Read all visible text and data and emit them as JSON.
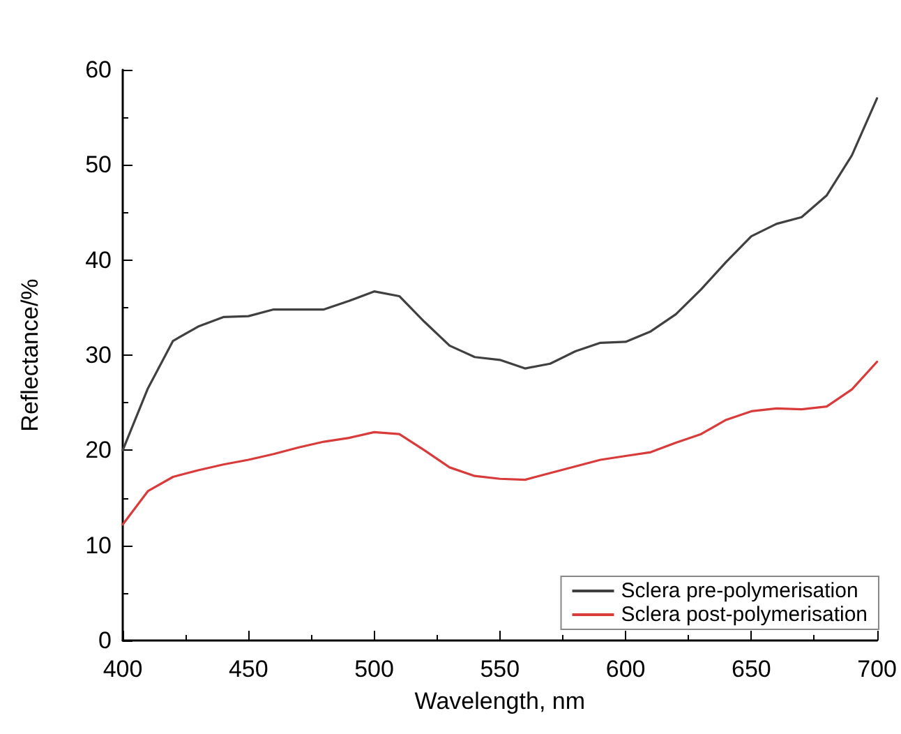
{
  "chart_data": {
    "type": "line",
    "xlabel": "Wavelength, nm",
    "ylabel": "Reflectance/%",
    "x": [
      400,
      410,
      420,
      430,
      440,
      450,
      460,
      470,
      480,
      490,
      500,
      510,
      520,
      530,
      540,
      550,
      560,
      570,
      580,
      590,
      600,
      610,
      620,
      630,
      640,
      650,
      660,
      670,
      680,
      690,
      700
    ],
    "series": [
      {
        "name": "Sclera pre-polymerisation",
        "color": "#404040",
        "values": [
          20,
          26.5,
          31.5,
          33,
          34,
          34.1,
          34.8,
          34.8,
          34.8,
          35.7,
          36.7,
          36.2,
          33.5,
          31,
          29.8,
          29.5,
          28.6,
          29.1,
          30.4,
          31.3,
          31.4,
          32.5,
          34.3,
          36.9,
          39.8,
          42.5,
          43.8,
          44.5,
          46.8,
          51,
          57
        ]
      },
      {
        "name": "Sclera post-polymerisation",
        "color": "#d93a3a",
        "values": [
          12.2,
          15.7,
          17.2,
          17.9,
          18.5,
          19,
          19.6,
          20.3,
          20.9,
          21.3,
          21.9,
          21.7,
          20,
          18.2,
          17.3,
          17,
          16.9,
          17.6,
          18.3,
          19,
          19.4,
          19.8,
          20.8,
          21.7,
          23.2,
          24.1,
          24.4,
          24.3,
          24.6,
          26.4,
          29.3
        ]
      }
    ],
    "xlim": [
      400,
      700
    ],
    "xticks": [
      400,
      450,
      500,
      550,
      600,
      650,
      700
    ],
    "ylim": [
      0,
      60
    ],
    "yticks": [
      0,
      10,
      20,
      30,
      40,
      50,
      60
    ],
    "grid": false,
    "legend": "bottom right",
    "marker": "none",
    "line_style": "solid"
  }
}
